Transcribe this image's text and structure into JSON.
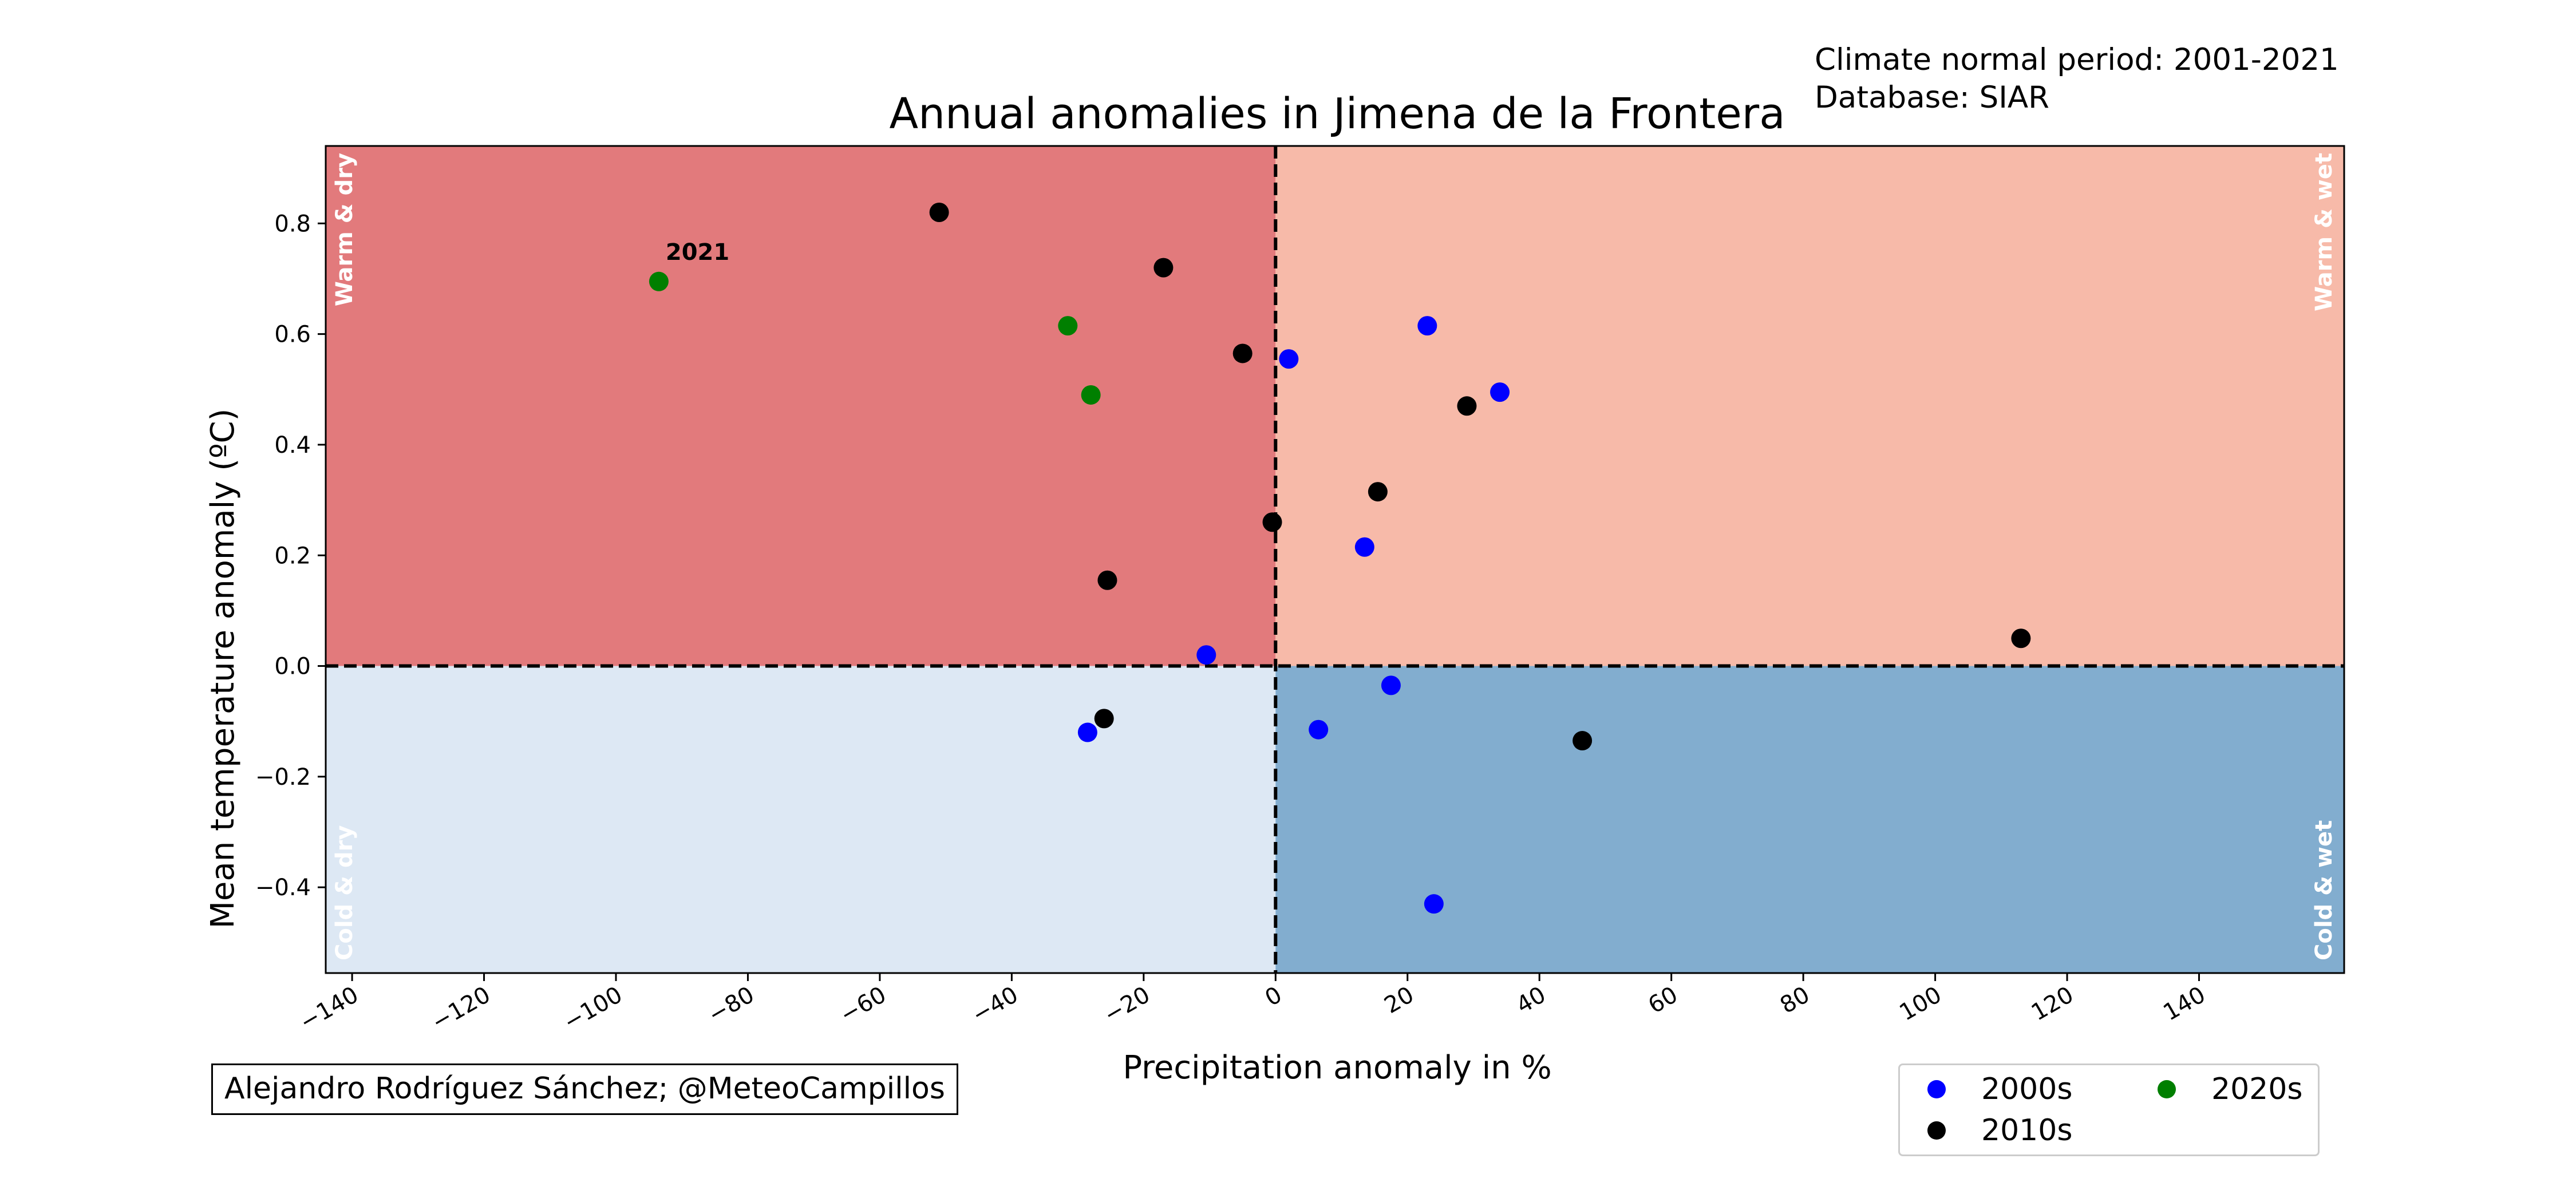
{
  "title": "Annual anomalies in Jimena de la Frontera",
  "meta": {
    "period": "Climate normal period: 2001-2021",
    "database": "Database: SIAR"
  },
  "credit": "Alejandro Rodríguez Sánchez; @MeteoCampillos",
  "quadrant_labels": {
    "warm_dry": "Warm & dry",
    "warm_wet": "Warm & wet",
    "cold_dry": "Cold & dry",
    "cold_wet": "Cold & wet"
  },
  "colors": {
    "warm_dry": "#e27a7c",
    "warm_wet": "#f7baa9",
    "cold_dry": "#dde8f4",
    "cold_wet": "#82adcf",
    "2000s": "#0000ff",
    "2010s": "#000000",
    "2020s": "#007f00"
  },
  "legend": [
    {
      "label": "2000s",
      "color_key": "2000s"
    },
    {
      "label": "2010s",
      "color_key": "2010s"
    },
    {
      "label": "2020s",
      "color_key": "2020s"
    }
  ],
  "chart_data": {
    "type": "scatter",
    "title": "Annual anomalies in Jimena de la Frontera",
    "xlabel": "Precipitation anomaly in %",
    "ylabel": "Mean temperature anomaly (ºC)",
    "xlim": [
      -144,
      162
    ],
    "ylim": [
      -0.555,
      0.94
    ],
    "xticks": [
      -140,
      -120,
      -100,
      -80,
      -60,
      -40,
      -20,
      0,
      20,
      40,
      60,
      80,
      100,
      120,
      140
    ],
    "xtick_labels": [
      "−140",
      "−120",
      "−100",
      "−80",
      "−60",
      "−40",
      "−20",
      "0",
      "20",
      "40",
      "60",
      "80",
      "100",
      "120",
      "140"
    ],
    "yticks": [
      -0.4,
      -0.2,
      0.0,
      0.2,
      0.4,
      0.6,
      0.8
    ],
    "ytick_labels": [
      "−0.4",
      "−0.2",
      "0.0",
      "0.2",
      "0.4",
      "0.6",
      "0.8"
    ],
    "grid": false,
    "legend_position": "bottom-right",
    "reference_lines": {
      "x": 0,
      "y": 0
    },
    "annotations": [
      {
        "text": "2021",
        "x": -93.5,
        "y": 0.695
      }
    ],
    "series": [
      {
        "name": "2000s",
        "color_key": "2000s",
        "points": [
          {
            "x": 2,
            "y": 0.555
          },
          {
            "x": 23,
            "y": 0.615
          },
          {
            "x": 34,
            "y": 0.495
          },
          {
            "x": 13.5,
            "y": 0.215
          },
          {
            "x": -10.5,
            "y": 0.02
          },
          {
            "x": -28.5,
            "y": -0.12
          },
          {
            "x": 6.5,
            "y": -0.115
          },
          {
            "x": 17.5,
            "y": -0.035
          },
          {
            "x": 24,
            "y": -0.43
          }
        ]
      },
      {
        "name": "2010s",
        "color_key": "2010s",
        "points": [
          {
            "x": -51,
            "y": 0.82
          },
          {
            "x": -17,
            "y": 0.72
          },
          {
            "x": -5,
            "y": 0.565
          },
          {
            "x": 29,
            "y": 0.47
          },
          {
            "x": 15.5,
            "y": 0.315
          },
          {
            "x": -0.5,
            "y": 0.26
          },
          {
            "x": -25.5,
            "y": 0.155
          },
          {
            "x": 113,
            "y": 0.05
          },
          {
            "x": -26,
            "y": -0.095
          },
          {
            "x": 46.5,
            "y": -0.135
          }
        ]
      },
      {
        "name": "2020s",
        "color_key": "2020s",
        "points": [
          {
            "x": -31.5,
            "y": 0.615
          },
          {
            "x": -28,
            "y": 0.49
          },
          {
            "x": -93.5,
            "y": 0.695
          }
        ]
      }
    ]
  }
}
